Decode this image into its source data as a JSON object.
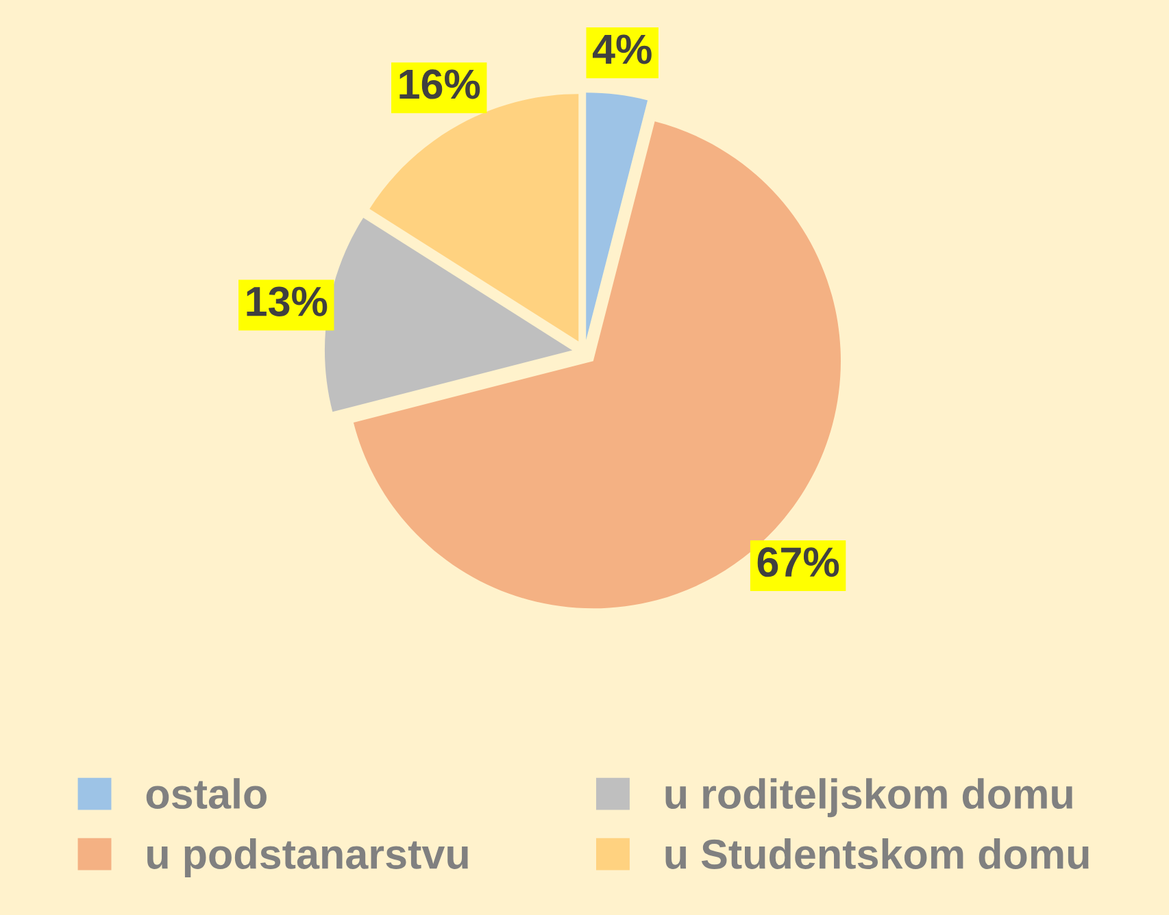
{
  "chart_data": {
    "type": "pie",
    "categories": [
      "ostalo",
      "u podstanarstvu",
      "u roditeljskom domu",
      "u Studentskom domu"
    ],
    "values": [
      4,
      67,
      13,
      16
    ],
    "colors": [
      "#9dc3e6",
      "#f4b183",
      "#bfbfbf",
      "#ffd280"
    ],
    "value_labels": [
      "4%",
      "67%",
      "13%",
      "16%"
    ],
    "legend": "bottom"
  }
}
